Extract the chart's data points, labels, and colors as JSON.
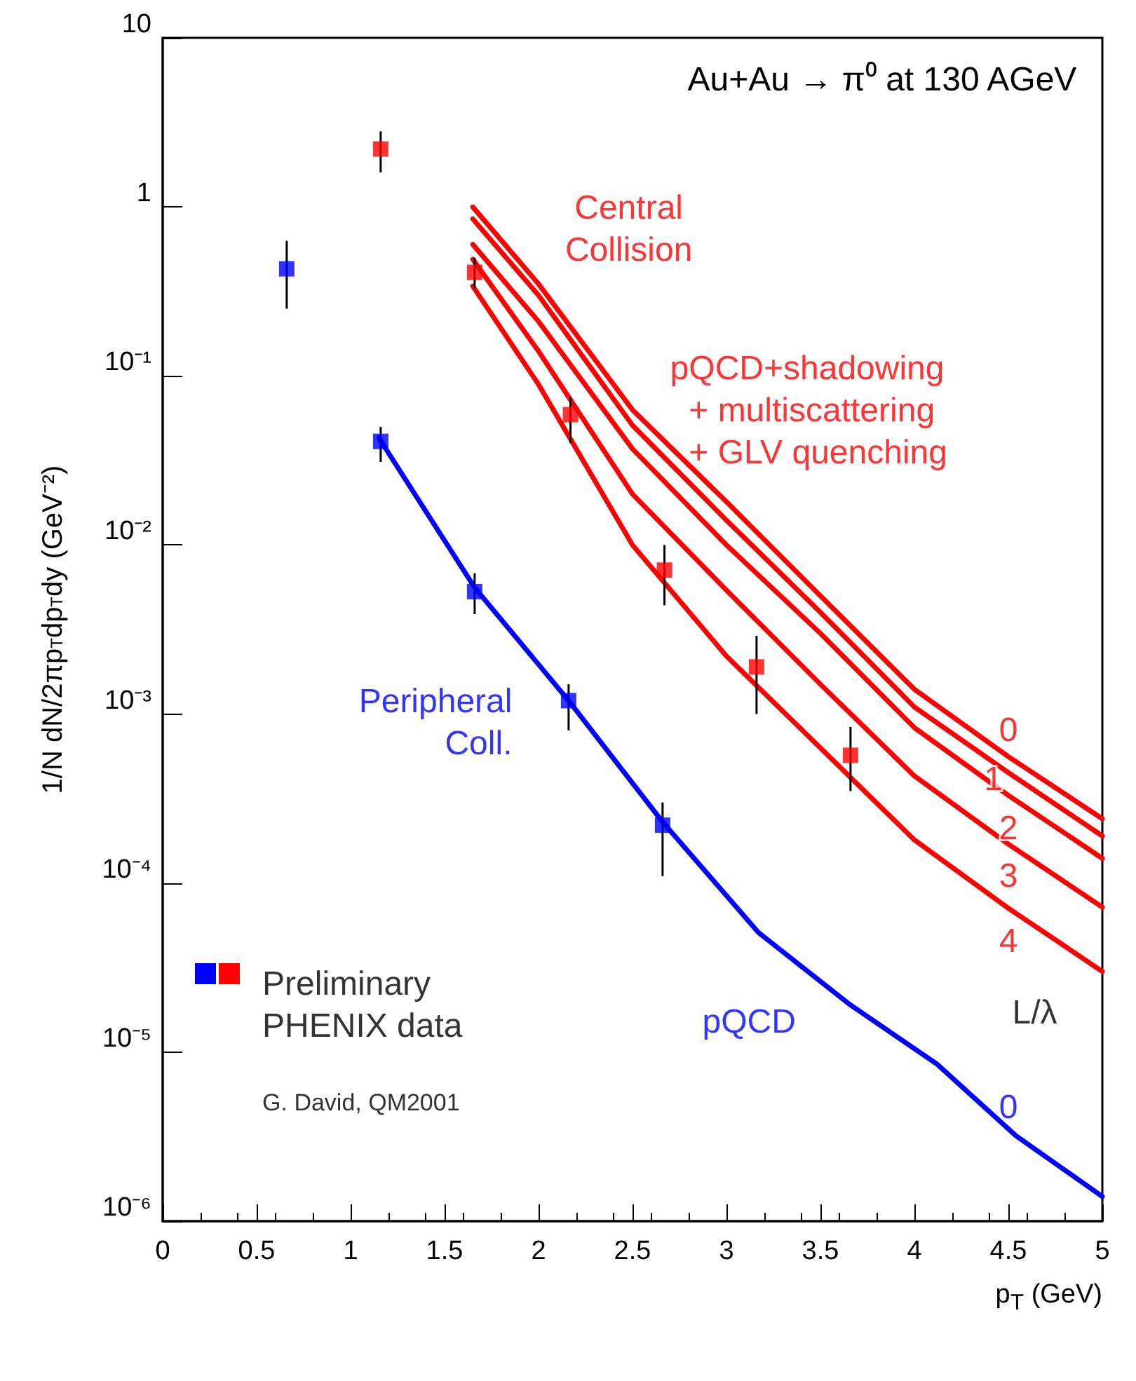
{
  "chart_data": {
    "type": "scatter",
    "title": "Au+Au → π⁰ at 130 AGeV",
    "xlabel": "p$_{T}$ (GeV)",
    "ylabel": "1/N dN/2πp$_{T}$dp$_{T}$dy (GeV⁻²)",
    "log": "y",
    "xlim": [
      0,
      5
    ],
    "xticks": [
      0,
      0.5,
      1,
      1.5,
      2,
      2.5,
      3,
      3.5,
      4,
      4.5,
      5
    ],
    "ylim": [
      1e-06,
      10
    ],
    "yticks": [
      {
        "value": 1e-06,
        "label": "10⁻⁶"
      },
      {
        "value": 1e-05,
        "label": "10⁻⁵"
      },
      {
        "value": 0.0001,
        "label": "10⁻⁴"
      },
      {
        "value": 0.001,
        "label": "10⁻³"
      },
      {
        "value": 0.01,
        "label": "10⁻²"
      },
      {
        "value": 0.1,
        "label": "10⁻¹"
      },
      1,
      10
    ],
    "grid": false,
    "marker": "square",
    "series": [
      {
        "color": "#0000ff",
        "x": [
          0.66,
          1.16,
          1.66,
          2.16,
          2.66
        ],
        "values": [
          0.43,
          0.041,
          0.0053,
          0.0012,
          0.00022
        ],
        "errors": [
          [
            0.25,
            0.63
          ],
          [
            0.031,
            0.05
          ],
          [
            0.0039,
            0.0068
          ],
          [
            0.0008,
            0.0015
          ],
          [
            0.00011,
            0.0003
          ]
        ]
      },
      {
        "color": "#ff0000",
        "x": [
          1.16,
          1.66,
          2.17,
          2.67,
          3.16,
          3.66
        ],
        "values": [
          2.2,
          0.41,
          0.059,
          0.0071,
          0.0019,
          0.00057
        ],
        "errors": [
          [
            1.6,
            2.8
          ],
          [
            0.33,
            0.5
          ],
          [
            0.04,
            0.075
          ],
          [
            0.0044,
            0.01
          ],
          [
            0.001,
            0.0029
          ],
          [
            0.00035,
            0.00084
          ]
        ]
      },
      {
        "type": "line",
        "color": "#0000ff",
        "marker": "none",
        "x": [
          1.15,
          1.66,
          2.16,
          2.66,
          3.17,
          3.66,
          4.12,
          4.54,
          5
        ],
        "values": [
          0.043,
          0.0056,
          0.0012,
          0.00023,
          5.1e-05,
          1.9e-05,
          8.5e-06,
          3.2e-06,
          1.4e-06
        ]
      },
      {
        "type": "line",
        "color": "#ff0000",
        "marker": "none",
        "x": [
          1.65,
          2,
          2.5,
          3,
          3.5,
          4,
          4.5,
          5
        ],
        "values": [
          1.0,
          0.35,
          0.063,
          0.018,
          0.005,
          0.0014,
          0.00056,
          0.00024
        ]
      },
      {
        "type": "line",
        "color": "#ff0000",
        "marker": "none",
        "x": [
          1.65,
          2,
          2.5,
          3,
          3.5,
          4,
          4.5,
          5
        ],
        "values": [
          0.85,
          0.3,
          0.051,
          0.014,
          0.004,
          0.0011,
          0.00045,
          0.00019
        ]
      },
      {
        "type": "line",
        "color": "#ff0000",
        "marker": "none",
        "x": [
          1.65,
          2,
          2.5,
          3,
          3.5,
          4,
          4.5,
          5
        ],
        "values": [
          0.6,
          0.21,
          0.037,
          0.01,
          0.003,
          0.00083,
          0.00033,
          0.00014
        ]
      },
      {
        "type": "line",
        "color": "#ff0000",
        "marker": "none",
        "x": [
          1.65,
          2,
          2.5,
          3,
          3.5,
          4,
          4.5,
          5
        ],
        "values": [
          0.49,
          0.14,
          0.02,
          0.0054,
          0.0015,
          0.00043,
          0.00017,
          7.2e-05
        ]
      },
      {
        "type": "line",
        "color": "#ff0000",
        "marker": "none",
        "x": [
          1.65,
          2,
          2.5,
          3,
          3.5,
          4,
          4.5,
          5
        ],
        "values": [
          0.34,
          0.089,
          0.01,
          0.0022,
          0.00063,
          0.00018,
          7.1e-05,
          3e-05
        ]
      }
    ],
    "annotations": [
      "Central\nCollision",
      "pQCD+shadowing\n  + multiscattering\n  + GLV quenching",
      "Peripheral\nColl.",
      "pQCD",
      "0",
      "0",
      "1",
      "2",
      "3",
      "4",
      "L/λ",
      "Preliminary\nPHENIX data",
      "G. David, QM2001"
    ]
  }
}
